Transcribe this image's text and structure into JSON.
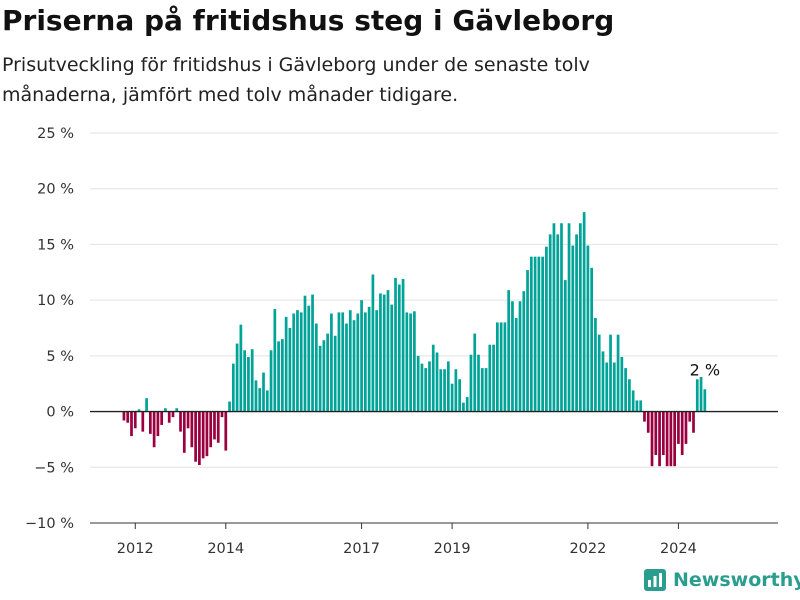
{
  "title": "Priserna på fritidshus steg i Gävleborg",
  "subtitle": "Prisutveckling för fritidshus i Gävleborg under de senaste tolv månaderna, jämfört med tolv månader tidigare.",
  "brand": "Newsworthy",
  "colors": {
    "positive": "#00a398",
    "negative": "#9a0040",
    "brand": "#2a9d8f"
  },
  "chart_data": {
    "type": "bar",
    "title": "Priserna på fritidshus steg i Gävleborg",
    "ylabel": "",
    "xlabel": "",
    "ylim": [
      -10,
      25
    ],
    "y_ticks": [
      -10,
      -5,
      0,
      5,
      10,
      15,
      20,
      25
    ],
    "y_tick_labels": [
      "−10 %",
      "−5 %",
      "0 %",
      "5 %",
      "10 %",
      "15 %",
      "20 %",
      "25 %"
    ],
    "x_ticks": [
      2012,
      2014,
      2017,
      2019,
      2022,
      2024
    ],
    "x_tick_labels": [
      "2012",
      "2014",
      "2017",
      "2019",
      "2022",
      "2024"
    ],
    "x_start": 2011.75,
    "period": "monthly",
    "annotation": "2 %",
    "grid": true,
    "values": [
      -0.8,
      -1,
      -2.2,
      -1.5,
      0.2,
      -1.8,
      1.2,
      -2,
      -3.2,
      -2.2,
      -1.2,
      0.3,
      -1,
      -0.5,
      0.3,
      -1.8,
      -3.7,
      -1.5,
      -3.2,
      -4.5,
      -4.8,
      -4.2,
      -4,
      -3.2,
      -2.5,
      -2.8,
      -0.5,
      -3.5,
      0.9,
      4.3,
      6.1,
      7.8,
      5.5,
      4.9,
      5.6,
      2.8,
      2.1,
      3.5,
      1.9,
      5.5,
      9.2,
      6.3,
      6.5,
      8.5,
      7.5,
      8.8,
      9.1,
      8.9,
      10.4,
      9.5,
      10.5,
      7.9,
      5.9,
      6.4,
      7.0,
      8.8,
      6.8,
      8.9,
      8.9,
      7.9,
      9.1,
      8.2,
      8.8,
      10.0,
      8.9,
      9.4,
      12.3,
      9.1,
      10.6,
      10.5,
      10.9,
      9.6,
      12.0,
      11.4,
      11.9,
      8.9,
      8.8,
      9.0,
      5.0,
      4.3,
      3.9,
      4.5,
      6.0,
      5.3,
      3.8,
      3.8,
      4.5,
      2.5,
      3.8,
      2.9,
      0.8,
      1.3,
      5.1,
      7.0,
      5.1,
      3.9,
      3.9,
      6.0,
      6.0,
      8.0,
      8.0,
      8.0,
      10.9,
      9.9,
      8.4,
      9.9,
      10.8,
      12.7,
      13.9,
      13.9,
      13.9,
      13.9,
      14.8,
      15.9,
      16.9,
      15.9,
      16.9,
      11.8,
      16.9,
      14.9,
      15.9,
      16.9,
      17.9,
      14.9,
      12.9,
      8.4,
      6.9,
      5.4,
      4.4,
      6.9,
      4.4,
      6.9,
      4.9,
      3.9,
      2.9,
      1.9,
      1.0,
      1.0,
      -0.9,
      -1.9,
      -4.9,
      -3.9,
      -4.9,
      -3.9,
      -4.9,
      -4.9,
      -4.9,
      -2.9,
      -3.9,
      -2.9,
      -0.9,
      -1.9,
      2.9,
      3.1,
      2.0
    ]
  }
}
